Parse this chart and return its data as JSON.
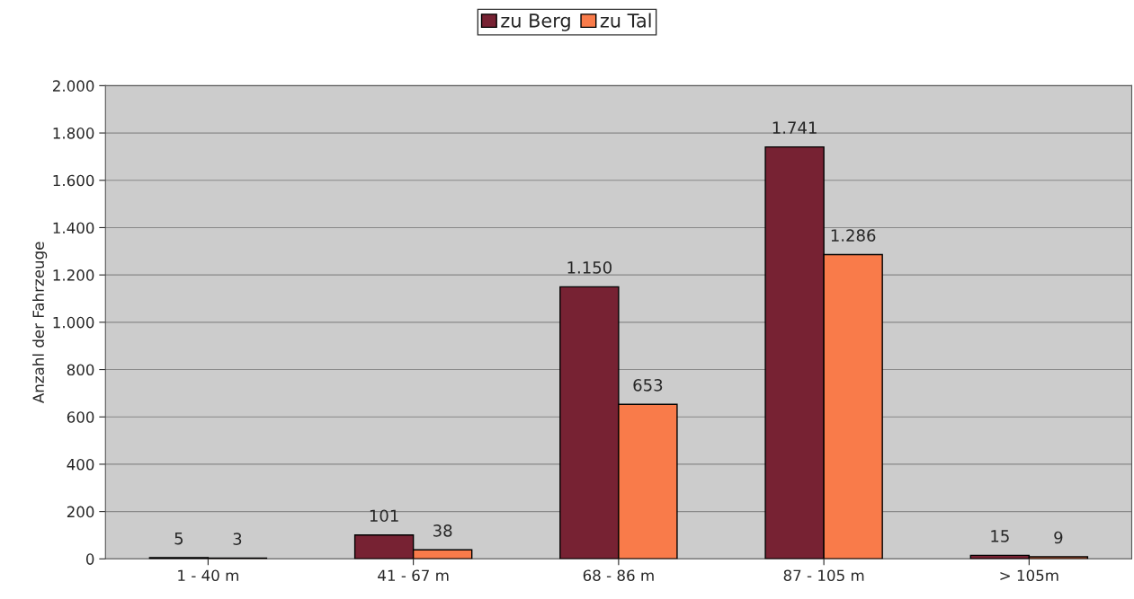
{
  "chart_data": {
    "type": "bar",
    "ylabel": "Anzahl der Fahrzeuge",
    "categories": [
      "1 - 40 m",
      "41 - 67 m",
      "68 - 86 m",
      "87 - 105 m",
      "> 105m"
    ],
    "series": [
      {
        "name": "zu Berg",
        "color": "#772233",
        "values": [
          5,
          101,
          1150,
          1741,
          15
        ],
        "value_labels": [
          "5",
          "101",
          "1.150",
          "1.741",
          "15"
        ]
      },
      {
        "name": "zu Tal",
        "color": "#f97b4a",
        "values": [
          3,
          38,
          653,
          1286,
          9
        ],
        "value_labels": [
          "3",
          "38",
          "653",
          "1.286",
          "9"
        ]
      }
    ],
    "ylim": [
      0,
      2000
    ],
    "yticks": [
      0,
      {
        "value": 200,
        "label": "200"
      },
      {
        "value": 400,
        "label": "400"
      },
      {
        "value": 600,
        "label": "600"
      },
      {
        "value": 800,
        "label": "800"
      },
      {
        "value": 1000,
        "label": "1.000"
      },
      {
        "value": 1200,
        "label": "1.200"
      },
      {
        "value": 1400,
        "label": "1.400"
      },
      {
        "value": 1600,
        "label": "1.600"
      },
      {
        "value": 1800,
        "label": "1.800"
      },
      {
        "value": 2000,
        "label": "2.000"
      }
    ],
    "grid": "y",
    "legend": "top"
  }
}
